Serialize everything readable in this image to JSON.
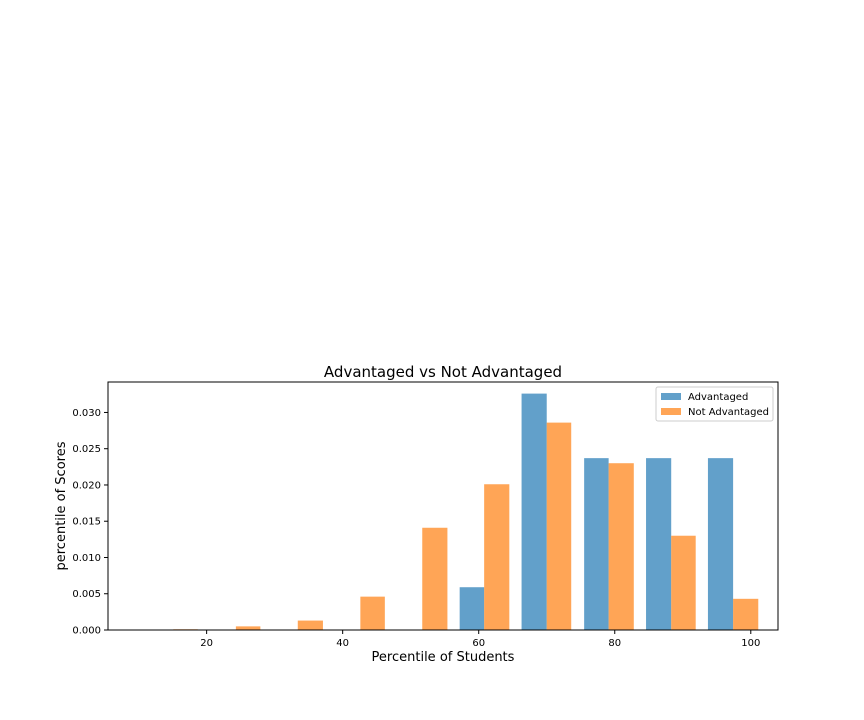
{
  "chart_data": {
    "type": "bar",
    "title": "Advantaged vs Not Advantaged",
    "xlabel": "Percentile of Students",
    "ylabel": "percentile of Scores",
    "xlim": [
      5.5,
      104
    ],
    "ylim": [
      0,
      0.0342
    ],
    "x_ticks": [
      20,
      40,
      60,
      80,
      100
    ],
    "y_ticks": [
      0.0,
      0.005,
      0.01,
      0.015,
      0.02,
      0.025,
      0.03
    ],
    "y_tick_labels": [
      "0.000",
      "0.005",
      "0.010",
      "0.015",
      "0.020",
      "0.025",
      "0.030"
    ],
    "grid": false,
    "legend_position": "top-right",
    "series": [
      {
        "name": "Advantaged",
        "color": "#1f77b4",
        "bins": [
          {
            "x0": 11.5,
            "x1": 15.1,
            "value": 0
          },
          {
            "x0": 20.6,
            "x1": 24.3,
            "value": 0
          },
          {
            "x0": 29.8,
            "x1": 33.4,
            "value": 0
          },
          {
            "x0": 38.9,
            "x1": 42.6,
            "value": 0
          },
          {
            "x0": 48.0,
            "x1": 51.7,
            "value": 0
          },
          {
            "x0": 57.2,
            "x1": 60.8,
            "value": 0.0059
          },
          {
            "x0": 66.3,
            "x1": 70.0,
            "value": 0.0326
          },
          {
            "x0": 75.5,
            "x1": 79.1,
            "value": 0.0237
          },
          {
            "x0": 84.6,
            "x1": 88.3,
            "value": 0.0237
          },
          {
            "x0": 93.7,
            "x1": 97.4,
            "value": 0.0237
          }
        ]
      },
      {
        "name": "Not Advantaged",
        "color": "#ff7f0e",
        "bins": [
          {
            "x0": 15.1,
            "x1": 18.7,
            "value": 0.0001
          },
          {
            "x0": 24.3,
            "x1": 27.9,
            "value": 0.0005
          },
          {
            "x0": 33.4,
            "x1": 37.1,
            "value": 0.0013
          },
          {
            "x0": 42.6,
            "x1": 46.2,
            "value": 0.0046
          },
          {
            "x0": 51.7,
            "x1": 55.4,
            "value": 0.0141
          },
          {
            "x0": 60.8,
            "x1": 64.5,
            "value": 0.0201
          },
          {
            "x0": 70.0,
            "x1": 73.6,
            "value": 0.0286
          },
          {
            "x0": 79.1,
            "x1": 82.8,
            "value": 0.023
          },
          {
            "x0": 88.3,
            "x1": 91.9,
            "value": 0.013
          },
          {
            "x0": 97.4,
            "x1": 101.1,
            "value": 0.0043
          }
        ]
      }
    ]
  }
}
